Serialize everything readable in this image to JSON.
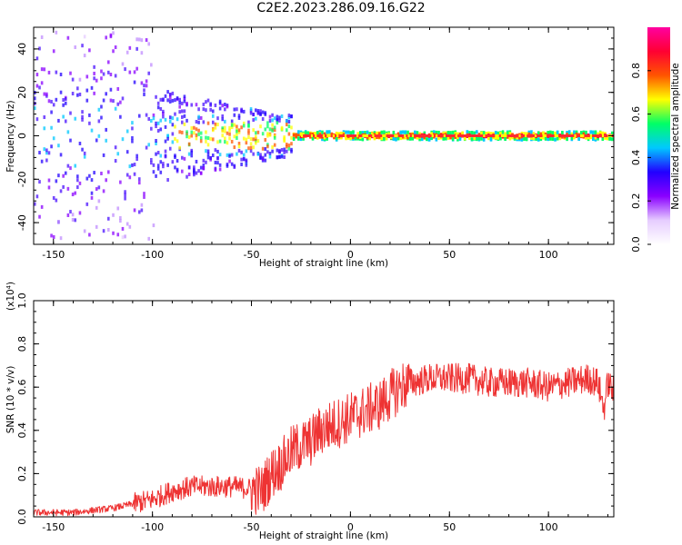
{
  "title": "C2E2.2023.286.09.16.G22",
  "chart_data": [
    {
      "type": "heatmap",
      "xlabel": "Height of straight line (km)",
      "ylabel": "Frequency (Hz)",
      "xlim": [
        -160,
        133
      ],
      "ylim": [
        -50,
        50
      ],
      "xticks": [
        -150,
        -100,
        -50,
        0,
        50,
        100
      ],
      "yticks": [
        -40,
        -20,
        0,
        20,
        40
      ],
      "colorbar": {
        "label": "Normalized spectral amplitude",
        "range": [
          0,
          1
        ],
        "ticks": [
          "0.0",
          "0.2",
          "0.4",
          "0.6",
          "0.8"
        ],
        "colors": [
          "#ffffff",
          "#e6ccff",
          "#8a00ff",
          "#2200ff",
          "#00c8ff",
          "#00ff66",
          "#ffff00",
          "#ff5500",
          "#ff0033",
          "#ff00a0"
        ]
      },
      "ridge": {
        "x_start": -160,
        "x_end": 133,
        "center_frequency": 0,
        "peak_amplitude_region_x": [
          -25,
          133
        ]
      }
    },
    {
      "type": "line",
      "xlabel": "Height of straight line (km)",
      "ylabel": "SNR (10 * v/v)",
      "y_multiplier": "(x10⁴)",
      "xlim": [
        -160,
        133
      ],
      "ylim": [
        0,
        1.0
      ],
      "xticks": [
        -150,
        -100,
        -50,
        0,
        50,
        100
      ],
      "yticks": [
        "0.0",
        "0.2",
        "0.4",
        "0.6",
        "0.8",
        "1.0"
      ],
      "series": [
        {
          "color": "#ee3333",
          "x": [
            -160,
            -140,
            -120,
            -100,
            -90,
            -80,
            -70,
            -60,
            -50,
            -45,
            -40,
            -35,
            -30,
            -25,
            -20,
            -15,
            -10,
            -5,
            0,
            5,
            10,
            15,
            20,
            25,
            30,
            40,
            50,
            60,
            70,
            80,
            90,
            100,
            110,
            115,
            120,
            125,
            128,
            130,
            133
          ],
          "y": [
            0.02,
            0.02,
            0.04,
            0.08,
            0.12,
            0.14,
            0.14,
            0.14,
            0.13,
            0.12,
            0.2,
            0.24,
            0.3,
            0.33,
            0.35,
            0.4,
            0.42,
            0.44,
            0.46,
            0.48,
            0.5,
            0.52,
            0.56,
            0.6,
            0.62,
            0.64,
            0.64,
            0.64,
            0.62,
            0.62,
            0.62,
            0.6,
            0.62,
            0.63,
            0.64,
            0.62,
            0.5,
            0.62,
            0.58
          ]
        }
      ]
    }
  ]
}
